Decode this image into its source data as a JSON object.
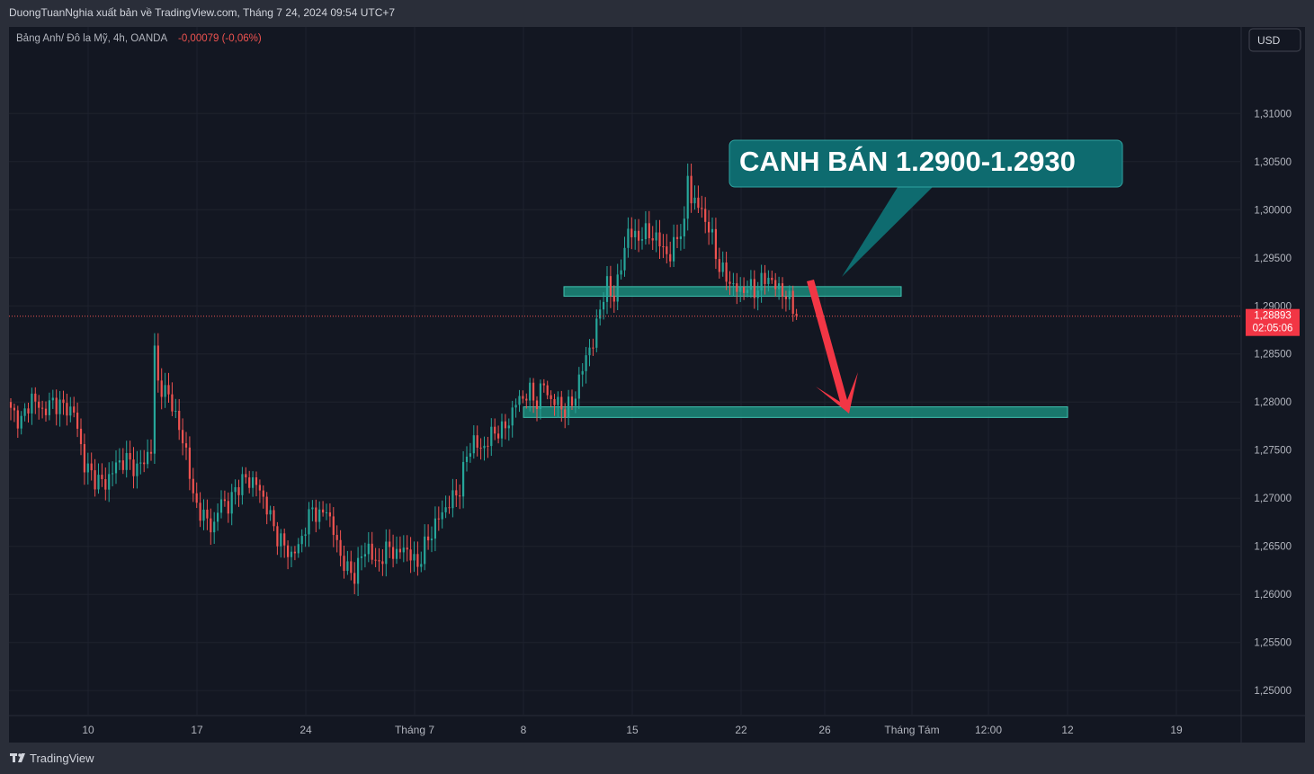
{
  "header": {
    "publish_line": "DuongTuanNghia xuất bản về TradingView.com, Tháng 7 24, 2024 09:54 UTC+7",
    "symbol_line": "Bảng Anh/ Đô la Mỹ, 4h, OANDA",
    "change": "-0,00079 (-0,06%)"
  },
  "currency_button": "USD",
  "current_price": {
    "label": "1,28893",
    "countdown": "02:05:06",
    "value": 1.28893
  },
  "annotation": {
    "text": "CANH BÁN 1.2900-1.2930"
  },
  "footer": {
    "brand": "TradingView"
  },
  "colors": {
    "background": "#131722",
    "frame": "#2a2e39",
    "grid": "#1e222d",
    "up": "#26a69a",
    "down": "#ef5350",
    "zone": "#1b8a7a",
    "callout": "#0e6b6f",
    "arrow": "#f23645"
  },
  "chart_data": {
    "type": "candlestick",
    "interval": "4h",
    "y_axis": {
      "ticks": [
        "1,31000",
        "1,30500",
        "1,30000",
        "1,29500",
        "1,29000",
        "1,28500",
        "1,28000",
        "1,27500",
        "1,27000",
        "1,26500",
        "1,26000",
        "1,25500",
        "1,25000"
      ],
      "tick_values": [
        1.31,
        1.305,
        1.3,
        1.295,
        1.29,
        1.285,
        1.28,
        1.275,
        1.27,
        1.265,
        1.26,
        1.255,
        1.25
      ],
      "ylim": [
        1.2474,
        1.319
      ]
    },
    "x_axis": {
      "ticks": [
        "10",
        "17",
        "24",
        "Tháng 7",
        "8",
        "15",
        "22",
        "26",
        "Tháng Tám",
        "12:00",
        "12",
        "19"
      ]
    },
    "series": [
      {
        "name": "GBPUSD",
        "close_path": [
          [
            0,
            1.279
          ],
          [
            3,
            1.278
          ],
          [
            6,
            1.2805
          ],
          [
            9,
            1.279
          ],
          [
            12,
            1.28
          ],
          [
            15,
            1.2795
          ],
          [
            18,
            1.279
          ],
          [
            21,
            1.2735
          ],
          [
            24,
            1.272
          ],
          [
            27,
            1.2715
          ],
          [
            30,
            1.2735
          ],
          [
            33,
            1.274
          ],
          [
            36,
            1.273
          ],
          [
            40,
            1.275
          ],
          [
            41,
            1.2855
          ],
          [
            42,
            1.282
          ],
          [
            44,
            1.281
          ],
          [
            46,
            1.28
          ],
          [
            48,
            1.277
          ],
          [
            50,
            1.275
          ],
          [
            52,
            1.27
          ],
          [
            55,
            1.268
          ],
          [
            58,
            1.267
          ],
          [
            60,
            1.27
          ],
          [
            62,
            1.269
          ],
          [
            64,
            1.271
          ],
          [
            67,
            1.272
          ],
          [
            70,
            1.2715
          ],
          [
            72,
            1.27
          ],
          [
            74,
            1.268
          ],
          [
            76,
            1.266
          ],
          [
            78,
            1.265
          ],
          [
            80,
            1.264
          ],
          [
            82,
            1.265
          ],
          [
            84,
            1.267
          ],
          [
            86,
            1.269
          ],
          [
            88,
            1.268
          ],
          [
            90,
            1.269
          ],
          [
            92,
            1.2665
          ],
          [
            94,
            1.264
          ],
          [
            96,
            1.2625
          ],
          [
            98,
            1.262
          ],
          [
            100,
            1.264
          ],
          [
            102,
            1.265
          ],
          [
            104,
            1.263
          ],
          [
            106,
            1.264
          ],
          [
            108,
            1.265
          ],
          [
            110,
            1.264
          ],
          [
            112,
            1.265
          ],
          [
            114,
            1.264
          ],
          [
            116,
            1.263
          ],
          [
            118,
            1.265
          ],
          [
            120,
            1.2665
          ],
          [
            122,
            1.268
          ],
          [
            124,
            1.269
          ],
          [
            126,
            1.27
          ],
          [
            128,
            1.271
          ],
          [
            130,
            1.2745
          ],
          [
            132,
            1.276
          ],
          [
            134,
            1.275
          ],
          [
            136,
            1.276
          ],
          [
            138,
            1.277
          ],
          [
            140,
            1.277
          ],
          [
            142,
            1.278
          ],
          [
            144,
            1.28
          ],
          [
            146,
            1.2805
          ],
          [
            148,
            1.281
          ],
          [
            150,
            1.28
          ],
          [
            152,
            1.282
          ],
          [
            154,
            1.28
          ],
          [
            156,
            1.28
          ],
          [
            158,
            1.279
          ],
          [
            160,
            1.28
          ],
          [
            162,
            1.282
          ],
          [
            164,
            1.285
          ],
          [
            166,
            1.286
          ],
          [
            168,
            1.29
          ],
          [
            170,
            1.292
          ],
          [
            172,
            1.291
          ],
          [
            174,
            1.294
          ],
          [
            176,
            1.298
          ],
          [
            178,
            1.297
          ],
          [
            180,
            1.2975
          ],
          [
            182,
            1.2975
          ],
          [
            184,
            1.297
          ],
          [
            186,
            1.296
          ],
          [
            188,
            1.295
          ],
          [
            190,
            1.2975
          ],
          [
            192,
            1.298
          ],
          [
            193,
            1.304
          ],
          [
            194,
            1.301
          ],
          [
            196,
            1.3005
          ],
          [
            198,
            1.299
          ],
          [
            200,
            1.297
          ],
          [
            202,
            1.294
          ],
          [
            204,
            1.293
          ],
          [
            206,
            1.292
          ],
          [
            208,
            1.2915
          ],
          [
            210,
            1.292
          ],
          [
            212,
            1.2915
          ],
          [
            214,
            1.2925
          ],
          [
            216,
            1.293
          ],
          [
            218,
            1.292
          ],
          [
            220,
            1.2915
          ],
          [
            222,
            1.2905
          ],
          [
            224,
            1.2893
          ]
        ]
      }
    ],
    "zones": [
      {
        "name": "sell-zone",
        "from": 1.291,
        "to": 1.292
      },
      {
        "name": "target-zone",
        "from": 1.2784,
        "to": 1.2795
      }
    ],
    "grid": true,
    "legend": "none"
  }
}
